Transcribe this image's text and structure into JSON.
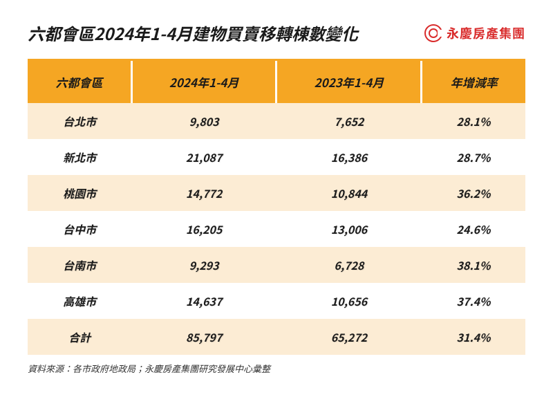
{
  "title": "六都會區2024年1-4月建物買賣移轉棟數變化",
  "brand": {
    "name": "永慶房產集團",
    "color": "#d92b2b"
  },
  "table": {
    "header_bg": "#f5a623",
    "row_odd_bg": "#fcecd4",
    "row_even_bg": "#ffffff",
    "text_color": "#1a1a1a",
    "columns": [
      "六都會區",
      "2024年1-4月",
      "2023年1-4月",
      "年增減率"
    ],
    "rows": [
      [
        "台北市",
        "9,803",
        "7,652",
        "28.1%"
      ],
      [
        "新北市",
        "21,087",
        "16,386",
        "28.7%"
      ],
      [
        "桃園市",
        "14,772",
        "10,844",
        "36.2%"
      ],
      [
        "台中市",
        "16,205",
        "13,006",
        "24.6%"
      ],
      [
        "台南市",
        "9,293",
        "6,728",
        "38.1%"
      ],
      [
        "高雄市",
        "14,637",
        "10,656",
        "37.4%"
      ],
      [
        "合計",
        "85,797",
        "65,272",
        "31.4%"
      ]
    ]
  },
  "source": "資料來源：各市政府地政局；永慶房產集團研究發展中心彙整"
}
